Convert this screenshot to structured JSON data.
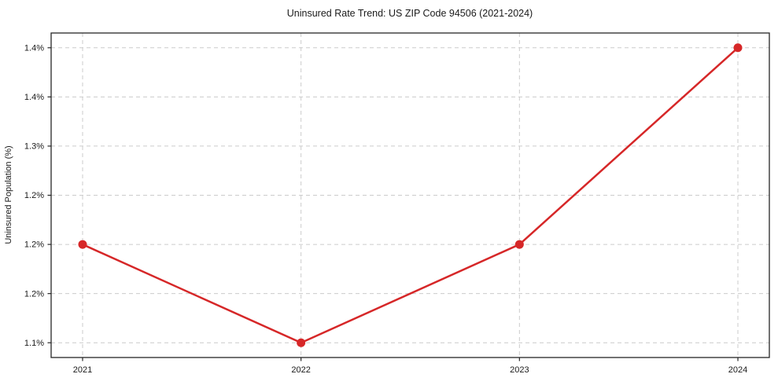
{
  "chart_data": {
    "type": "line",
    "title": "Uninsured Rate Trend: US ZIP Code 94506 (2021-2024)",
    "xlabel": "",
    "ylabel": "Uninsured Population (%)",
    "x": [
      2021,
      2022,
      2023,
      2024
    ],
    "values": [
      1.2,
      1.1,
      1.2,
      1.4
    ],
    "xlim": [
      2020.856,
      2024.144
    ],
    "ylim": [
      1.085,
      1.415
    ],
    "xticks": {
      "values": [
        2021,
        2022,
        2023,
        2024
      ],
      "labels": [
        "2021",
        "2022",
        "2023",
        "2024"
      ]
    },
    "yticks": {
      "values": [
        1.1,
        1.15,
        1.2,
        1.25,
        1.3,
        1.35,
        1.4
      ],
      "labels": [
        "1.1%",
        "1.2%",
        "1.2%",
        "1.2%",
        "1.3%",
        "1.4%",
        "1.4%"
      ]
    },
    "grid": true,
    "grid_style": "dashed",
    "legend": false,
    "marker": "circle",
    "colors": {
      "line": "#d62728",
      "marker": "#d62728",
      "grid": "#cccccc",
      "axis": "#262626",
      "text": "#1a1a1a"
    }
  }
}
